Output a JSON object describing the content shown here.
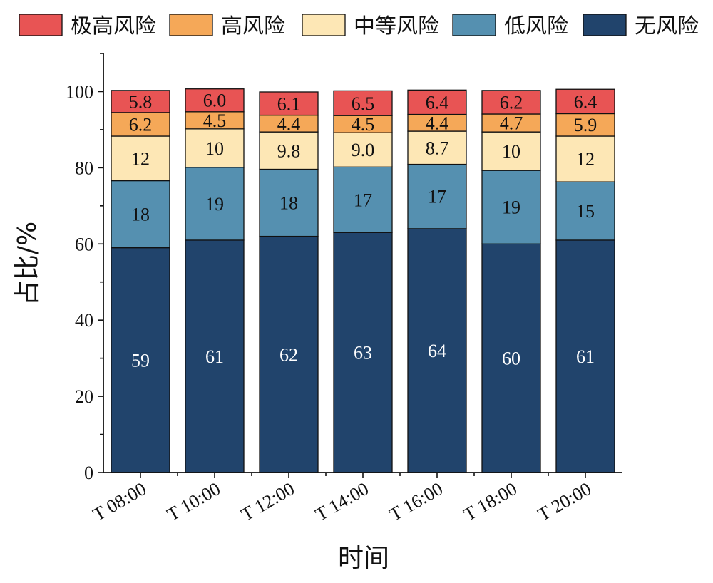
{
  "chart_data": {
    "type": "bar",
    "stacked": true,
    "categories": [
      "T 08:00",
      "T 10:00",
      "T 12:00",
      "T 14:00",
      "T 16:00",
      "T 18:00",
      "T 20:00"
    ],
    "series": [
      {
        "name": "无风险",
        "color": "#21446c",
        "label_color": "#ffffff",
        "values": [
          59,
          61,
          62,
          63,
          64,
          60,
          61
        ],
        "labels": [
          "59",
          "61",
          "62",
          "63",
          "64",
          "60",
          "61"
        ]
      },
      {
        "name": "低风险",
        "color": "#5590b0",
        "label_color": "#111111",
        "values": [
          17.6,
          19.1,
          17.6,
          17.2,
          16.9,
          19.3,
          15.3
        ],
        "labels": [
          "18",
          "19",
          "18",
          "17",
          "17",
          "19",
          "15"
        ]
      },
      {
        "name": "中等风险",
        "color": "#fde7b5",
        "label_color": "#111111",
        "values": [
          11.7,
          10.1,
          9.8,
          9.0,
          8.7,
          10.1,
          12.0
        ],
        "labels": [
          "12",
          "10",
          "9.8",
          "9.0",
          "8.7",
          "10",
          "12"
        ]
      },
      {
        "name": "高风险",
        "color": "#f5a858",
        "label_color": "#111111",
        "values": [
          6.2,
          4.5,
          4.4,
          4.5,
          4.4,
          4.7,
          5.9
        ],
        "labels": [
          "6.2",
          "4.5",
          "4.4",
          "4.5",
          "4.4",
          "4.7",
          "5.9"
        ]
      },
      {
        "name": "极高风险",
        "color": "#e85454",
        "label_color": "#111111",
        "values": [
          5.8,
          6.0,
          6.1,
          6.5,
          6.4,
          6.2,
          6.4
        ],
        "labels": [
          "5.8",
          "6.0",
          "6.1",
          "6.5",
          "6.4",
          "6.2",
          "6.4"
        ]
      }
    ],
    "legend_order": [
      "极高风险",
      "高风险",
      "中等风险",
      "低风险",
      "无风险"
    ],
    "xlabel": "时间",
    "ylabel": "占比/%",
    "ylim": [
      0,
      110
    ],
    "yticks": [
      0,
      20,
      40,
      60,
      80,
      100
    ],
    "grid": false,
    "legend_position": "top"
  }
}
